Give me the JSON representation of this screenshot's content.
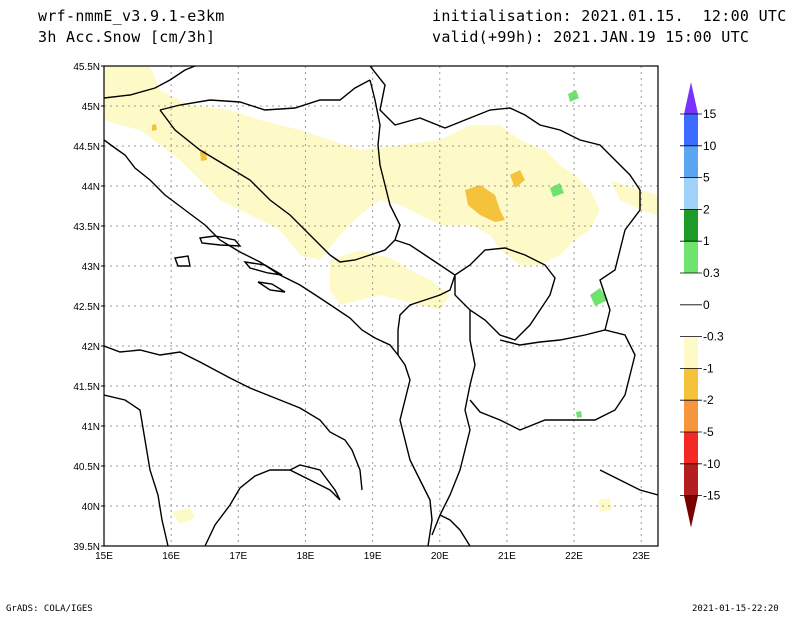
{
  "header": {
    "model": "wrf-nmmE_v3.9.1-e3km",
    "field": "3h Acc.Snow [cm/3h]",
    "init": "initialisation: 2021.01.15.  12:00 UTC",
    "valid": "valid(+99h): 2021.JAN.19 15:00 UTC"
  },
  "map": {
    "lon_ticks": [
      "15E",
      "16E",
      "17E",
      "18E",
      "19E",
      "20E",
      "21E",
      "22E",
      "23E"
    ],
    "lat_ticks": [
      "45.5N",
      "45N",
      "44.5N",
      "44N",
      "43.5N",
      "43N",
      "42.5N",
      "42N",
      "41.5N",
      "41N",
      "40.5N",
      "40N",
      "39.5N"
    ],
    "lon_range": [
      15,
      23.25
    ],
    "lat_range": [
      39.5,
      45.5
    ],
    "grid": true
  },
  "colorbar": {
    "labels": [
      "15",
      "10",
      "5",
      "2",
      "1",
      "0.3",
      "0",
      "-0.3",
      "-1",
      "-2",
      "-5",
      "-10",
      "-15"
    ],
    "colors": [
      "#7a32ff",
      "#3c6bff",
      "#5aa6f0",
      "#a0d2fa",
      "#1e9a28",
      "#6ee46e",
      "#ffffff",
      "#ffffff",
      "#fefac8",
      "#f5c23c",
      "#f5963c",
      "#f52828",
      "#b41e1e",
      "#7a0000"
    ]
  },
  "footer": {
    "left": "GrADS: COLA/IGES",
    "right": "2021-01-15-22:20"
  }
}
